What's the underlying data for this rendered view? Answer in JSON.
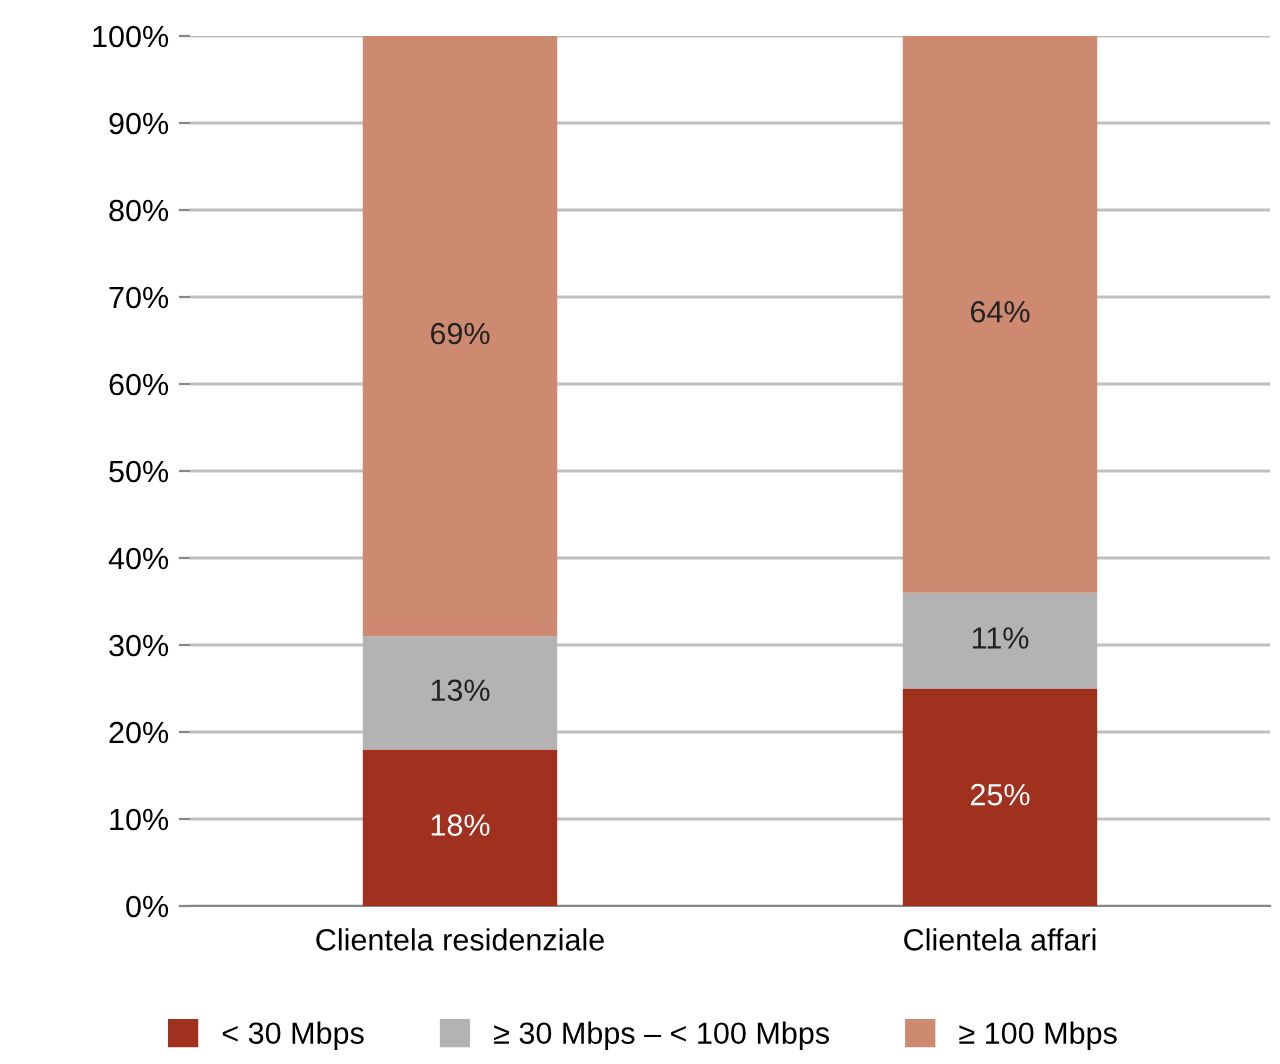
{
  "chart_data": {
    "type": "bar",
    "stacked": true,
    "categories": [
      "Clientela residenziale",
      "Clientela affari"
    ],
    "series": [
      {
        "name": "< 30 Mbps",
        "color": "#a0311f",
        "values": [
          18,
          25
        ],
        "value_labels": [
          "18%",
          "25%"
        ]
      },
      {
        "name": "≥ 30 Mbps – < 100 Mbps",
        "color": "#b3b3b3",
        "values": [
          13,
          11
        ],
        "value_labels": [
          "13%",
          "11%"
        ]
      },
      {
        "name": "≥ 100 Mbps",
        "color": "#cd8a70",
        "values": [
          69,
          64
        ],
        "value_labels": [
          "69%",
          "64%"
        ]
      }
    ],
    "ylim": [
      0,
      100
    ],
    "yticks": [
      {
        "value": 0,
        "label": "0%"
      },
      {
        "value": 10,
        "label": "10%"
      },
      {
        "value": 20,
        "label": "20%"
      },
      {
        "value": 30,
        "label": "30%"
      },
      {
        "value": 40,
        "label": "40%"
      },
      {
        "value": 50,
        "label": "50%"
      },
      {
        "value": 60,
        "label": "60%"
      },
      {
        "value": 70,
        "label": "70%"
      },
      {
        "value": 80,
        "label": "80%"
      },
      {
        "value": 90,
        "label": "90%"
      },
      {
        "value": 100,
        "label": "100%"
      }
    ],
    "grid": "y",
    "legend": "bottom"
  }
}
